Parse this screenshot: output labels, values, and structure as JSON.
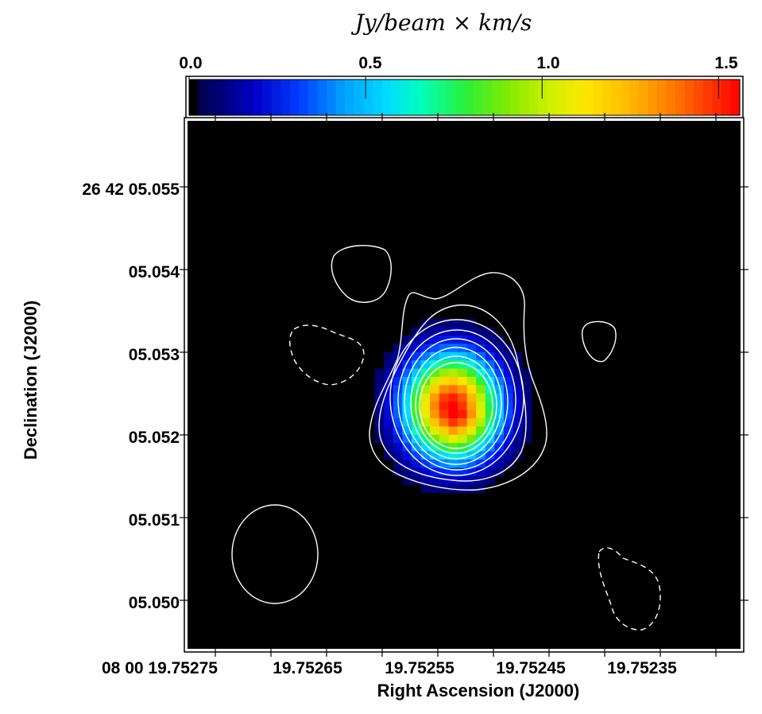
{
  "chart_data": {
    "type": "heatmap",
    "title": "",
    "colorbar": {
      "label": "Jy/beam × km/s",
      "range": [
        0.0,
        1.56
      ],
      "ticks": [
        0.0,
        0.5,
        1.0,
        1.5
      ],
      "tick_labels": [
        "0.0",
        "0.5",
        "1.0",
        "1.5"
      ],
      "colormap": "jet-like (black at 0, blue, cyan, green, yellow, orange, red)"
    },
    "xlabel": "Right Ascension (J2000)",
    "ylabel": "Declination (J2000)",
    "x_ticks": [
      "08 00 19.75275",
      "19.75265",
      "19.75255",
      "19.75245",
      "19.75235"
    ],
    "y_ticks": [
      "26 42 05.055",
      "05.054",
      "05.053",
      "05.052",
      "05.051",
      "05.050"
    ],
    "x_range_seconds": [
      19.752762,
      19.75226
    ],
    "y_range_arcsec": [
      5.04942,
      5.05581
    ],
    "background_color": "#000000",
    "contour_color": "#ffffff",
    "source": {
      "ra_center_seconds": 19.752522,
      "dec_center_arcsec": 5.05235,
      "peak_value": 1.56
    },
    "contours": {
      "positive_levels_around_source": 8,
      "negative_dashed_regions": 2,
      "isolated_positive_regions": 3
    }
  }
}
